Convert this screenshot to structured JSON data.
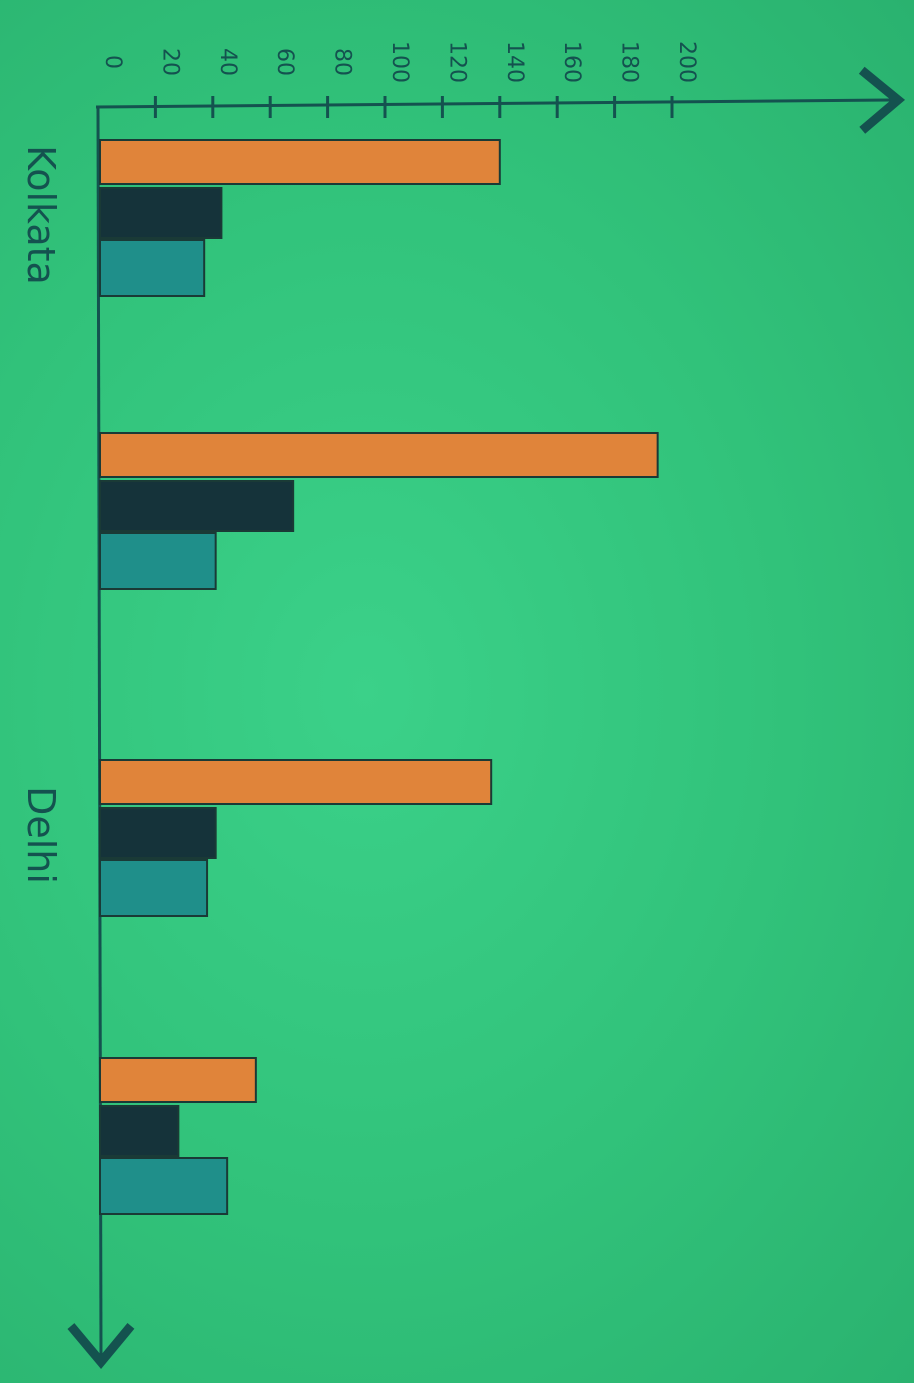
{
  "chart_data": {
    "type": "bar",
    "orientation": "horizontal-bars, rotated photo of hand-drawn chart",
    "ylim": [
      0,
      200
    ],
    "ticks": [
      "0",
      "20",
      "40",
      "60",
      "80",
      "100",
      "120",
      "140",
      "160",
      "180",
      "200"
    ],
    "groups": [
      {
        "label": "Kolkata",
        "values": [
          140,
          43,
          37
        ]
      },
      {
        "label": "",
        "values": [
          195,
          68,
          41
        ]
      },
      {
        "label": "Delhi",
        "values": [
          137,
          41,
          38
        ]
      },
      {
        "label": "",
        "values": [
          55,
          28,
          45
        ]
      }
    ],
    "series_colors": [
      "#e0843a",
      "#15333a",
      "#1f8f8a"
    ],
    "grid": false,
    "legend": "none"
  }
}
